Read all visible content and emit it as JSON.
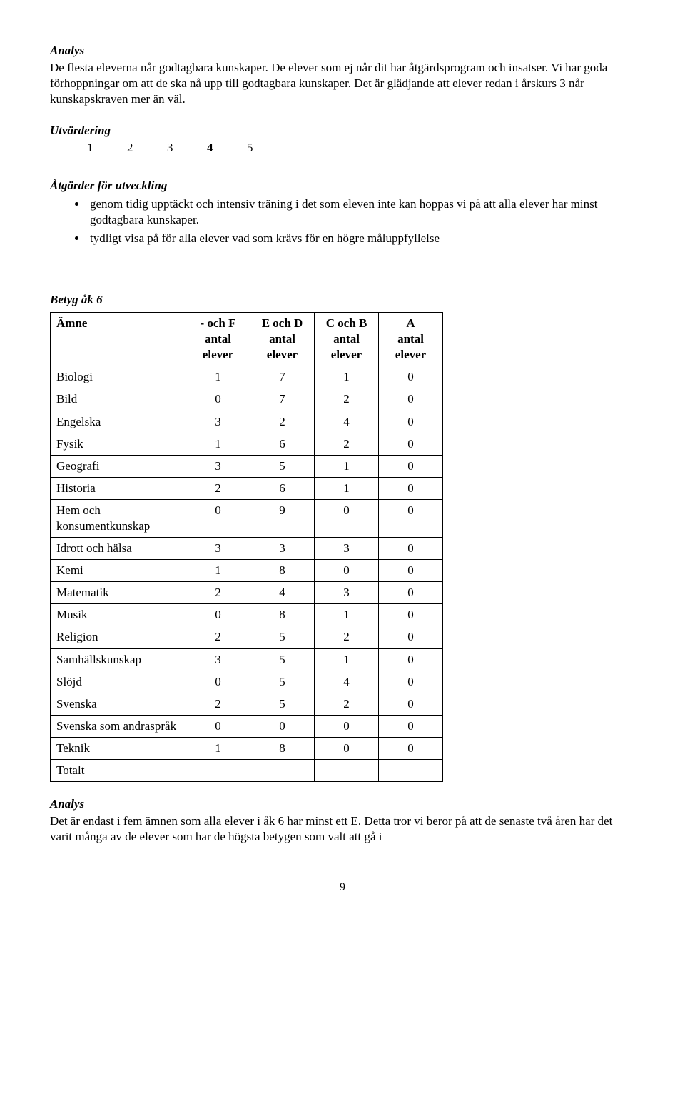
{
  "analys1": {
    "title": "Analys",
    "p1": "De flesta eleverna når godtagbara kunskaper. De elever som ej når dit har åtgärdsprogram och insatser. Vi har goda förhoppningar om att de ska nå upp till godtagbara kunskaper. Det är glädjande att elever redan i årskurs 3 når kunskapskraven mer än väl."
  },
  "utvardering": {
    "title": "Utvärdering",
    "scale": [
      "1",
      "2",
      "3",
      "4",
      "5"
    ],
    "highlight_index": 3
  },
  "atgarder": {
    "title": "Åtgärder för utveckling",
    "items": [
      "genom tidig upptäckt och intensiv träning i det som eleven inte kan hoppas vi på att alla elever har minst godtagbara kunskaper.",
      "tydligt visa på för alla elever vad som krävs för en högre måluppfyllelse"
    ]
  },
  "betyg": {
    "title": "Betyg åk 6",
    "columns": [
      {
        "line1": "Ämne",
        "line2": "",
        "line3": ""
      },
      {
        "line1": "- och F",
        "line2": "antal",
        "line3": "elever"
      },
      {
        "line1": "E och D",
        "line2": "antal",
        "line3": "elever"
      },
      {
        "line1": "C och B",
        "line2": "antal",
        "line3": "elever"
      },
      {
        "line1": "A",
        "line2": "antal",
        "line3": "elever"
      }
    ],
    "rows": [
      {
        "subject": "Biologi",
        "v": [
          "1",
          "7",
          "1",
          "0"
        ]
      },
      {
        "subject": "Bild",
        "v": [
          "0",
          "7",
          "2",
          "0"
        ]
      },
      {
        "subject": "Engelska",
        "v": [
          "3",
          "2",
          "4",
          "0"
        ]
      },
      {
        "subject": "Fysik",
        "v": [
          "1",
          "6",
          "2",
          "0"
        ]
      },
      {
        "subject": "Geografi",
        "v": [
          "3",
          "5",
          "1",
          "0"
        ]
      },
      {
        "subject": "Historia",
        "v": [
          "2",
          "6",
          "1",
          "0"
        ]
      },
      {
        "subject": "Hem och konsumentkunskap",
        "v": [
          "0",
          "9",
          "0",
          "0"
        ]
      },
      {
        "subject": "Idrott och hälsa",
        "v": [
          "3",
          "3",
          "3",
          "0"
        ]
      },
      {
        "subject": "Kemi",
        "v": [
          "1",
          "8",
          "0",
          "0"
        ]
      },
      {
        "subject": "Matematik",
        "v": [
          "2",
          "4",
          "3",
          "0"
        ]
      },
      {
        "subject": "Musik",
        "v": [
          "0",
          "8",
          "1",
          "0"
        ]
      },
      {
        "subject": "Religion",
        "v": [
          "2",
          "5",
          "2",
          "0"
        ]
      },
      {
        "subject": "Samhällskunskap",
        "v": [
          "3",
          "5",
          "1",
          "0"
        ]
      },
      {
        "subject": "Slöjd",
        "v": [
          "0",
          "5",
          "4",
          "0"
        ]
      },
      {
        "subject": "Svenska",
        "v": [
          "2",
          "5",
          "2",
          "0"
        ]
      },
      {
        "subject": "Svenska som andraspråk",
        "v": [
          "0",
          "0",
          "0",
          "0"
        ]
      },
      {
        "subject": "Teknik",
        "v": [
          "1",
          "8",
          "0",
          "0"
        ]
      },
      {
        "subject": "Totalt",
        "v": [
          "",
          "",
          "",
          ""
        ]
      }
    ]
  },
  "analys2": {
    "title": "Analys",
    "p1": " Det är endast i fem ämnen som alla elever i åk 6 har minst ett E. Detta tror vi beror på att de senaste två åren har det varit många av de elever som har de högsta betygen som valt att gå i"
  },
  "page_number": "9"
}
